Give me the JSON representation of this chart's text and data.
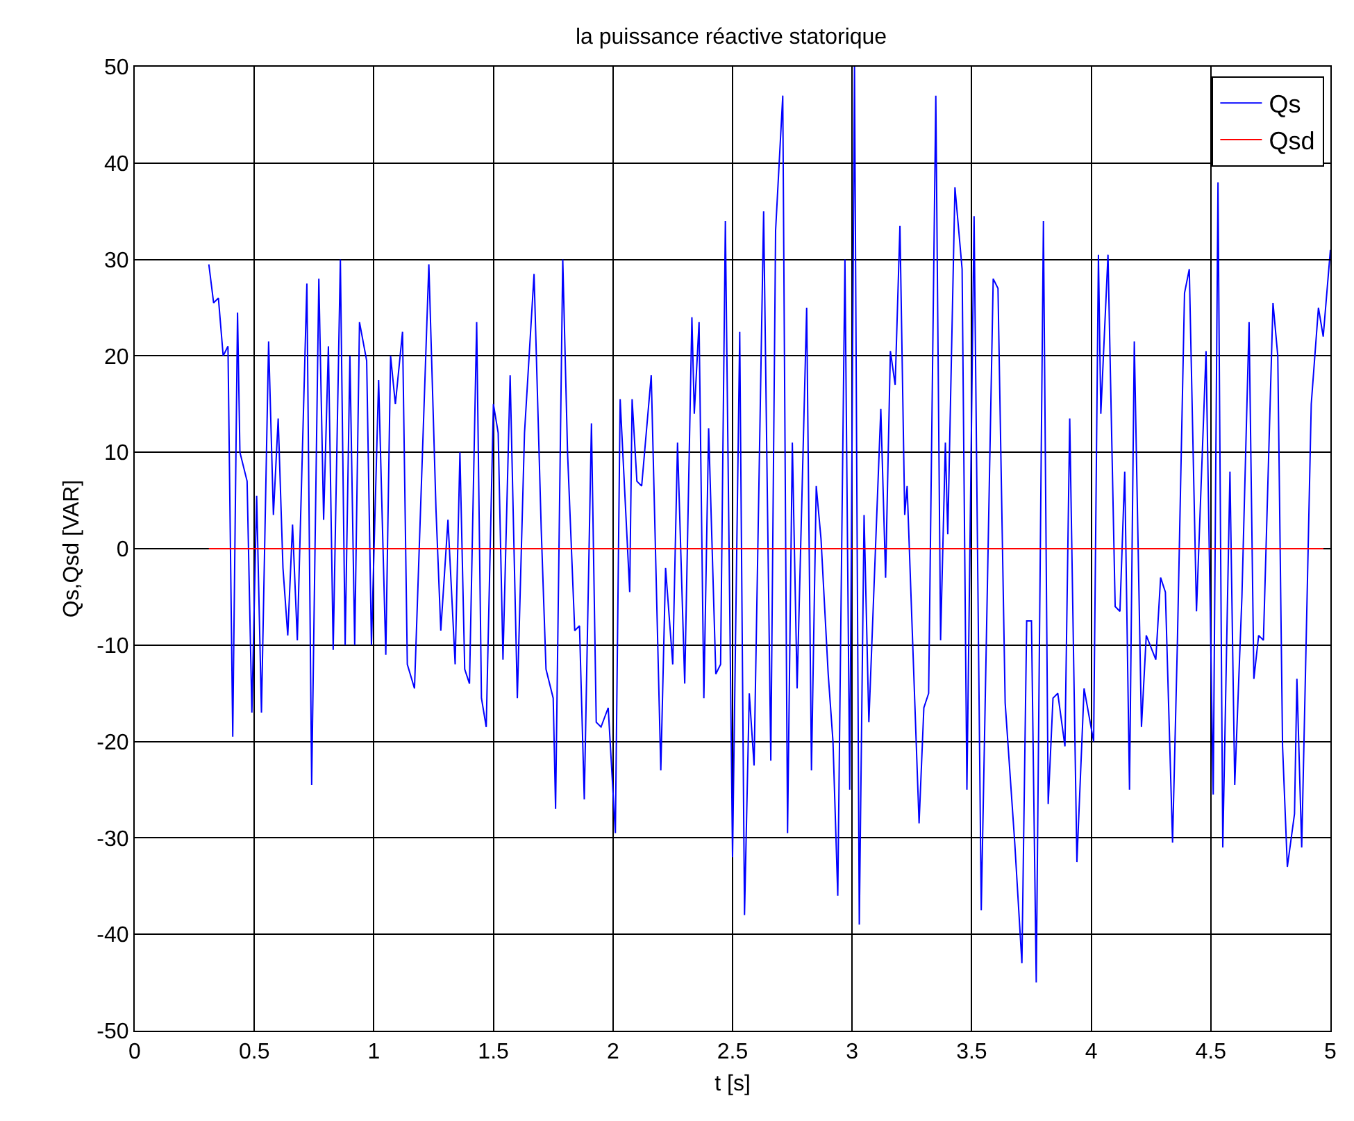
{
  "chart_data": {
    "type": "line",
    "title": "la puissance réactive statorique",
    "xlabel": "t [s]",
    "ylabel": "Qs,Qsd [VAR]",
    "xlim": [
      0,
      5
    ],
    "xticks": [
      0,
      0.5,
      1,
      1.5,
      2,
      2.5,
      3,
      3.5,
      4,
      4.5,
      5
    ],
    "ylim": [
      -50,
      50
    ],
    "yticks": [
      -50,
      -40,
      -30,
      -20,
      -10,
      0,
      10,
      20,
      30,
      40,
      50
    ],
    "grid": true,
    "legend": "top right",
    "marker": "none",
    "line_style": "solid",
    "series": [
      {
        "name": "Qs",
        "color": "#0000ff",
        "x": [
          0.31,
          0.33,
          0.35,
          0.37,
          0.39,
          0.41,
          0.43,
          0.44,
          0.47,
          0.49,
          0.51,
          0.53,
          0.56,
          0.58,
          0.6,
          0.62,
          0.64,
          0.66,
          0.68,
          0.72,
          0.74,
          0.77,
          0.79,
          0.81,
          0.83,
          0.86,
          0.88,
          0.9,
          0.92,
          0.94,
          0.97,
          0.99,
          1.02,
          1.05,
          1.07,
          1.09,
          1.12,
          1.14,
          1.17,
          1.23,
          1.26,
          1.28,
          1.31,
          1.34,
          1.36,
          1.38,
          1.4,
          1.43,
          1.45,
          1.47,
          1.5,
          1.52,
          1.54,
          1.57,
          1.6,
          1.63,
          1.67,
          1.7,
          1.72,
          1.75,
          1.76,
          1.79,
          1.81,
          1.84,
          1.86,
          1.88,
          1.91,
          1.93,
          1.95,
          1.98,
          2.01,
          2.03,
          2.07,
          2.08,
          2.1,
          2.12,
          2.16,
          2.2,
          2.22,
          2.25,
          2.27,
          2.3,
          2.33,
          2.34,
          2.36,
          2.38,
          2.4,
          2.43,
          2.45,
          2.47,
          2.5,
          2.53,
          2.55,
          2.57,
          2.59,
          2.63,
          2.66,
          2.68,
          2.71,
          2.73,
          2.75,
          2.77,
          2.81,
          2.83,
          2.85,
          2.87,
          2.9,
          2.92,
          2.94,
          2.97,
          2.99,
          3.01,
          3.03,
          3.05,
          3.07,
          3.12,
          3.14,
          3.16,
          3.18,
          3.2,
          3.22,
          3.23,
          3.28,
          3.3,
          3.32,
          3.35,
          3.37,
          3.39,
          3.4,
          3.43,
          3.46,
          3.48,
          3.51,
          3.54,
          3.59,
          3.61,
          3.64,
          3.68,
          3.71,
          3.73,
          3.75,
          3.77,
          3.8,
          3.82,
          3.84,
          3.86,
          3.89,
          3.91,
          3.94,
          3.97,
          4.01,
          4.03,
          4.04,
          4.07,
          4.1,
          4.12,
          4.14,
          4.16,
          4.18,
          4.21,
          4.23,
          4.27,
          4.29,
          4.31,
          4.34,
          4.36,
          4.39,
          4.41,
          4.44,
          4.48,
          4.51,
          4.53,
          4.55,
          4.58,
          4.6,
          4.63,
          4.66,
          4.68,
          4.7,
          4.72,
          4.76,
          4.78,
          4.8,
          4.82,
          4.85,
          4.86,
          4.88,
          4.92,
          4.95,
          4.97,
          5.0
        ],
        "values": [
          29.5,
          25.5,
          26,
          20,
          21,
          -19.5,
          24.5,
          10,
          7,
          -17,
          5.5,
          -17,
          21.5,
          3.5,
          13.5,
          -2,
          -9,
          2.5,
          -9.5,
          27.5,
          -24.5,
          28,
          3,
          21,
          -10.5,
          30,
          -10,
          20,
          -10,
          23.5,
          19.5,
          -10,
          17.5,
          -11,
          20,
          15,
          22.5,
          -12,
          -14.5,
          29.5,
          4,
          -8.5,
          3,
          -12,
          10,
          -12.5,
          -14,
          23.5,
          -15.5,
          -18.5,
          15,
          12,
          -11.5,
          18,
          -15.5,
          12,
          28.5,
          2,
          -12.5,
          -15.5,
          -27,
          30,
          10,
          -8.5,
          -8,
          -26,
          13,
          -18,
          -18.5,
          -16.5,
          -29.5,
          15.5,
          -4.5,
          15.5,
          7,
          6.5,
          18,
          -23,
          -2,
          -12,
          11,
          -14,
          24,
          14,
          23.5,
          -15.5,
          12.5,
          -13,
          -12,
          34,
          -32,
          22.5,
          -38,
          -15,
          -22.5,
          35,
          -22,
          33,
          47,
          -29.5,
          11,
          -14.5,
          25,
          -23,
          6.5,
          1,
          -13,
          -20,
          -36,
          30,
          -25,
          50,
          -39,
          3.5,
          -18,
          14.5,
          -3,
          20.5,
          17,
          33.5,
          3.5,
          6.5,
          -28.5,
          -16.5,
          -15,
          47,
          -9.5,
          11,
          1.5,
          37.5,
          29,
          -25,
          34.5,
          -37.5,
          28,
          27,
          -16,
          -30.5,
          -43,
          -7.5,
          -7.5,
          -45,
          34,
          -26.5,
          -15.5,
          -15,
          -20.5,
          13.5,
          -32.5,
          -14.5,
          -20,
          30.5,
          14,
          30.5,
          -6,
          -6.5,
          8,
          -25,
          21.5,
          -18.5,
          -9,
          -11.5,
          -3,
          -4.5,
          -30.5,
          -10,
          26.5,
          29,
          -6.5,
          20.5,
          -25.5,
          38,
          -31,
          8,
          -24.5,
          -5,
          23.5,
          -13.5,
          -9,
          -9.5,
          25.5,
          20,
          -20.5,
          -33,
          -27.5,
          -13.5,
          -31,
          15,
          25,
          22,
          31
        ]
      },
      {
        "name": "Qsd",
        "color": "#ff0000",
        "x": [
          0.31,
          5.0
        ],
        "values": [
          0,
          0
        ]
      }
    ]
  }
}
